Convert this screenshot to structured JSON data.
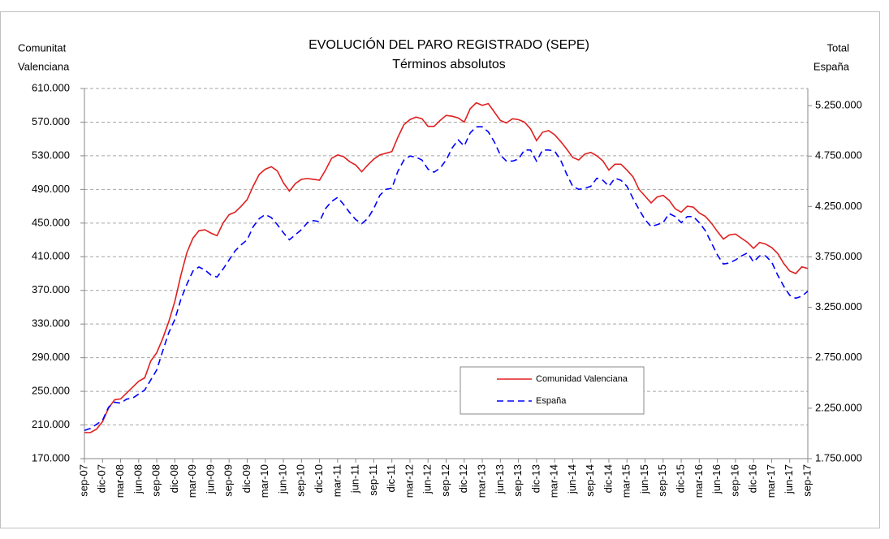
{
  "chart_data": {
    "type": "line",
    "title": "EVOLUCIÓN DEL PARO REGISTRADO (SEPE)",
    "subtitle": "Términos absolutos",
    "y_axis_label": [
      "Comunitat",
      "Valenciana"
    ],
    "y2_axis_label": [
      "Total",
      "España"
    ],
    "categories": [
      "sep-07",
      null,
      null,
      "dic-07",
      null,
      null,
      "mar-08",
      null,
      null,
      "jun-08",
      null,
      null,
      "sep-08",
      null,
      null,
      "dic-08",
      null,
      null,
      "mar-09",
      null,
      null,
      "jun-09",
      null,
      null,
      "sep-09",
      null,
      null,
      "dic-09",
      null,
      null,
      "mar-10",
      null,
      null,
      "jun-10",
      null,
      null,
      "sep-10",
      null,
      null,
      "dic-10",
      null,
      null,
      "mar-11",
      null,
      null,
      "jun-11",
      null,
      null,
      "sep-11",
      null,
      null,
      "dic-11",
      null,
      null,
      "mar-12",
      null,
      null,
      "jun-12",
      null,
      null,
      "sep-12",
      null,
      null,
      "dic-12",
      null,
      null,
      "mar-13",
      null,
      null,
      "jun-13",
      null,
      null,
      "sep-13",
      null,
      null,
      "dic-13",
      null,
      null,
      "mar-14",
      null,
      null,
      "jun-14",
      null,
      null,
      "sep-14",
      null,
      null,
      "dic-14",
      null,
      null,
      "mar-15",
      null,
      null,
      "jun-15",
      null,
      null,
      "sep-15",
      null,
      null,
      "dic-15",
      null,
      null,
      "mar-16",
      null,
      null,
      "jun-16",
      null,
      null,
      "sep-16",
      null,
      null,
      "dic-16",
      null,
      null,
      "mar-17",
      null,
      null,
      "jun-17",
      null,
      null,
      "sep-17"
    ],
    "series": [
      {
        "name": "Comunidad Valenciana",
        "color": "#e02020",
        "line_style": "solid",
        "axis": "y",
        "values": [
          201000,
          201000,
          205000,
          214000,
          230000,
          240000,
          241000,
          248000,
          255000,
          262000,
          266000,
          286000,
          296000,
          313000,
          333000,
          357000,
          388000,
          415000,
          432000,
          441000,
          442000,
          438000,
          435000,
          450000,
          460000,
          463000,
          470000,
          478000,
          494000,
          508000,
          514000,
          517000,
          512000,
          498000,
          488000,
          497000,
          502000,
          503000,
          502000,
          501000,
          513000,
          527000,
          531000,
          529000,
          523000,
          519000,
          511000,
          519000,
          526000,
          531000,
          533000,
          535000,
          552000,
          567000,
          573000,
          576000,
          574000,
          565000,
          565000,
          572000,
          578000,
          577000,
          575000,
          570000,
          586000,
          593000,
          590000,
          592000,
          582000,
          572000,
          569000,
          574000,
          573000,
          570000,
          562000,
          548000,
          558000,
          560000,
          555000,
          547000,
          538000,
          528000,
          525000,
          532000,
          534000,
          530000,
          524000,
          513000,
          520000,
          520000,
          513000,
          505000,
          490000,
          482000,
          474000,
          481000,
          483000,
          477000,
          467000,
          463000,
          470000,
          469000,
          462000,
          458000,
          450000,
          440000,
          431000,
          436000,
          437000,
          432000,
          427000,
          420000,
          427000,
          425000,
          421000,
          414000,
          402000,
          393000,
          390000,
          398000,
          396000
        ]
      },
      {
        "name": "España",
        "color": "#0000ff",
        "line_style": "dashed",
        "axis": "y2",
        "values": [
          2030000,
          2050000,
          2090000,
          2130000,
          2260000,
          2310000,
          2300000,
          2340000,
          2350000,
          2390000,
          2430000,
          2530000,
          2630000,
          2820000,
          3000000,
          3130000,
          3330000,
          3480000,
          3610000,
          3650000,
          3620000,
          3570000,
          3550000,
          3630000,
          3720000,
          3810000,
          3870000,
          3920000,
          4050000,
          4130000,
          4170000,
          4140000,
          4070000,
          3990000,
          3920000,
          3970000,
          4020000,
          4090000,
          4110000,
          4100000,
          4230000,
          4300000,
          4340000,
          4270000,
          4190000,
          4120000,
          4080000,
          4130000,
          4230000,
          4360000,
          4420000,
          4430000,
          4600000,
          4710000,
          4750000,
          4740000,
          4710000,
          4620000,
          4590000,
          4630000,
          4710000,
          4830000,
          4910000,
          4850000,
          4980000,
          5040000,
          5040000,
          4990000,
          4890000,
          4760000,
          4700000,
          4700000,
          4720000,
          4810000,
          4810000,
          4700000,
          4810000,
          4810000,
          4800000,
          4710000,
          4570000,
          4450000,
          4420000,
          4430000,
          4450000,
          4530000,
          4510000,
          4450000,
          4530000,
          4510000,
          4450000,
          4330000,
          4220000,
          4120000,
          4050000,
          4070000,
          4090000,
          4180000,
          4150000,
          4090000,
          4150000,
          4150000,
          4090000,
          4010000,
          3890000,
          3770000,
          3680000,
          3690000,
          3720000,
          3760000,
          3790000,
          3700000,
          3760000,
          3760000,
          3700000,
          3570000,
          3460000,
          3370000,
          3340000,
          3360000,
          3410000
        ]
      }
    ],
    "ylim": [
      170000,
      610000
    ],
    "yticks": [
      {
        "value": 170000,
        "label": "170.000"
      },
      {
        "value": 210000,
        "label": "210.000"
      },
      {
        "value": 250000,
        "label": "250.000"
      },
      {
        "value": 290000,
        "label": "290.000"
      },
      {
        "value": 330000,
        "label": "330.000"
      },
      {
        "value": 370000,
        "label": "370.000"
      },
      {
        "value": 410000,
        "label": "410.000"
      },
      {
        "value": 450000,
        "label": "450.000"
      },
      {
        "value": 490000,
        "label": "490.000"
      },
      {
        "value": 530000,
        "label": "530.000"
      },
      {
        "value": 570000,
        "label": "570.000"
      },
      {
        "value": 610000,
        "label": "610.000"
      }
    ],
    "y2lim": [
      1750000,
      5420000
    ],
    "y2ticks": [
      {
        "value": 1750000,
        "label": "1.750.000"
      },
      {
        "value": 2250000,
        "label": "2.250.000"
      },
      {
        "value": 2750000,
        "label": "2.750.000"
      },
      {
        "value": 3250000,
        "label": "3.250.000"
      },
      {
        "value": 3750000,
        "label": "3.750.000"
      },
      {
        "value": 4250000,
        "label": "4.250.000"
      },
      {
        "value": 4750000,
        "label": "4.750.000"
      },
      {
        "value": 5250000,
        "label": "5.250.000"
      }
    ],
    "grid": true,
    "legend": "lower right"
  }
}
